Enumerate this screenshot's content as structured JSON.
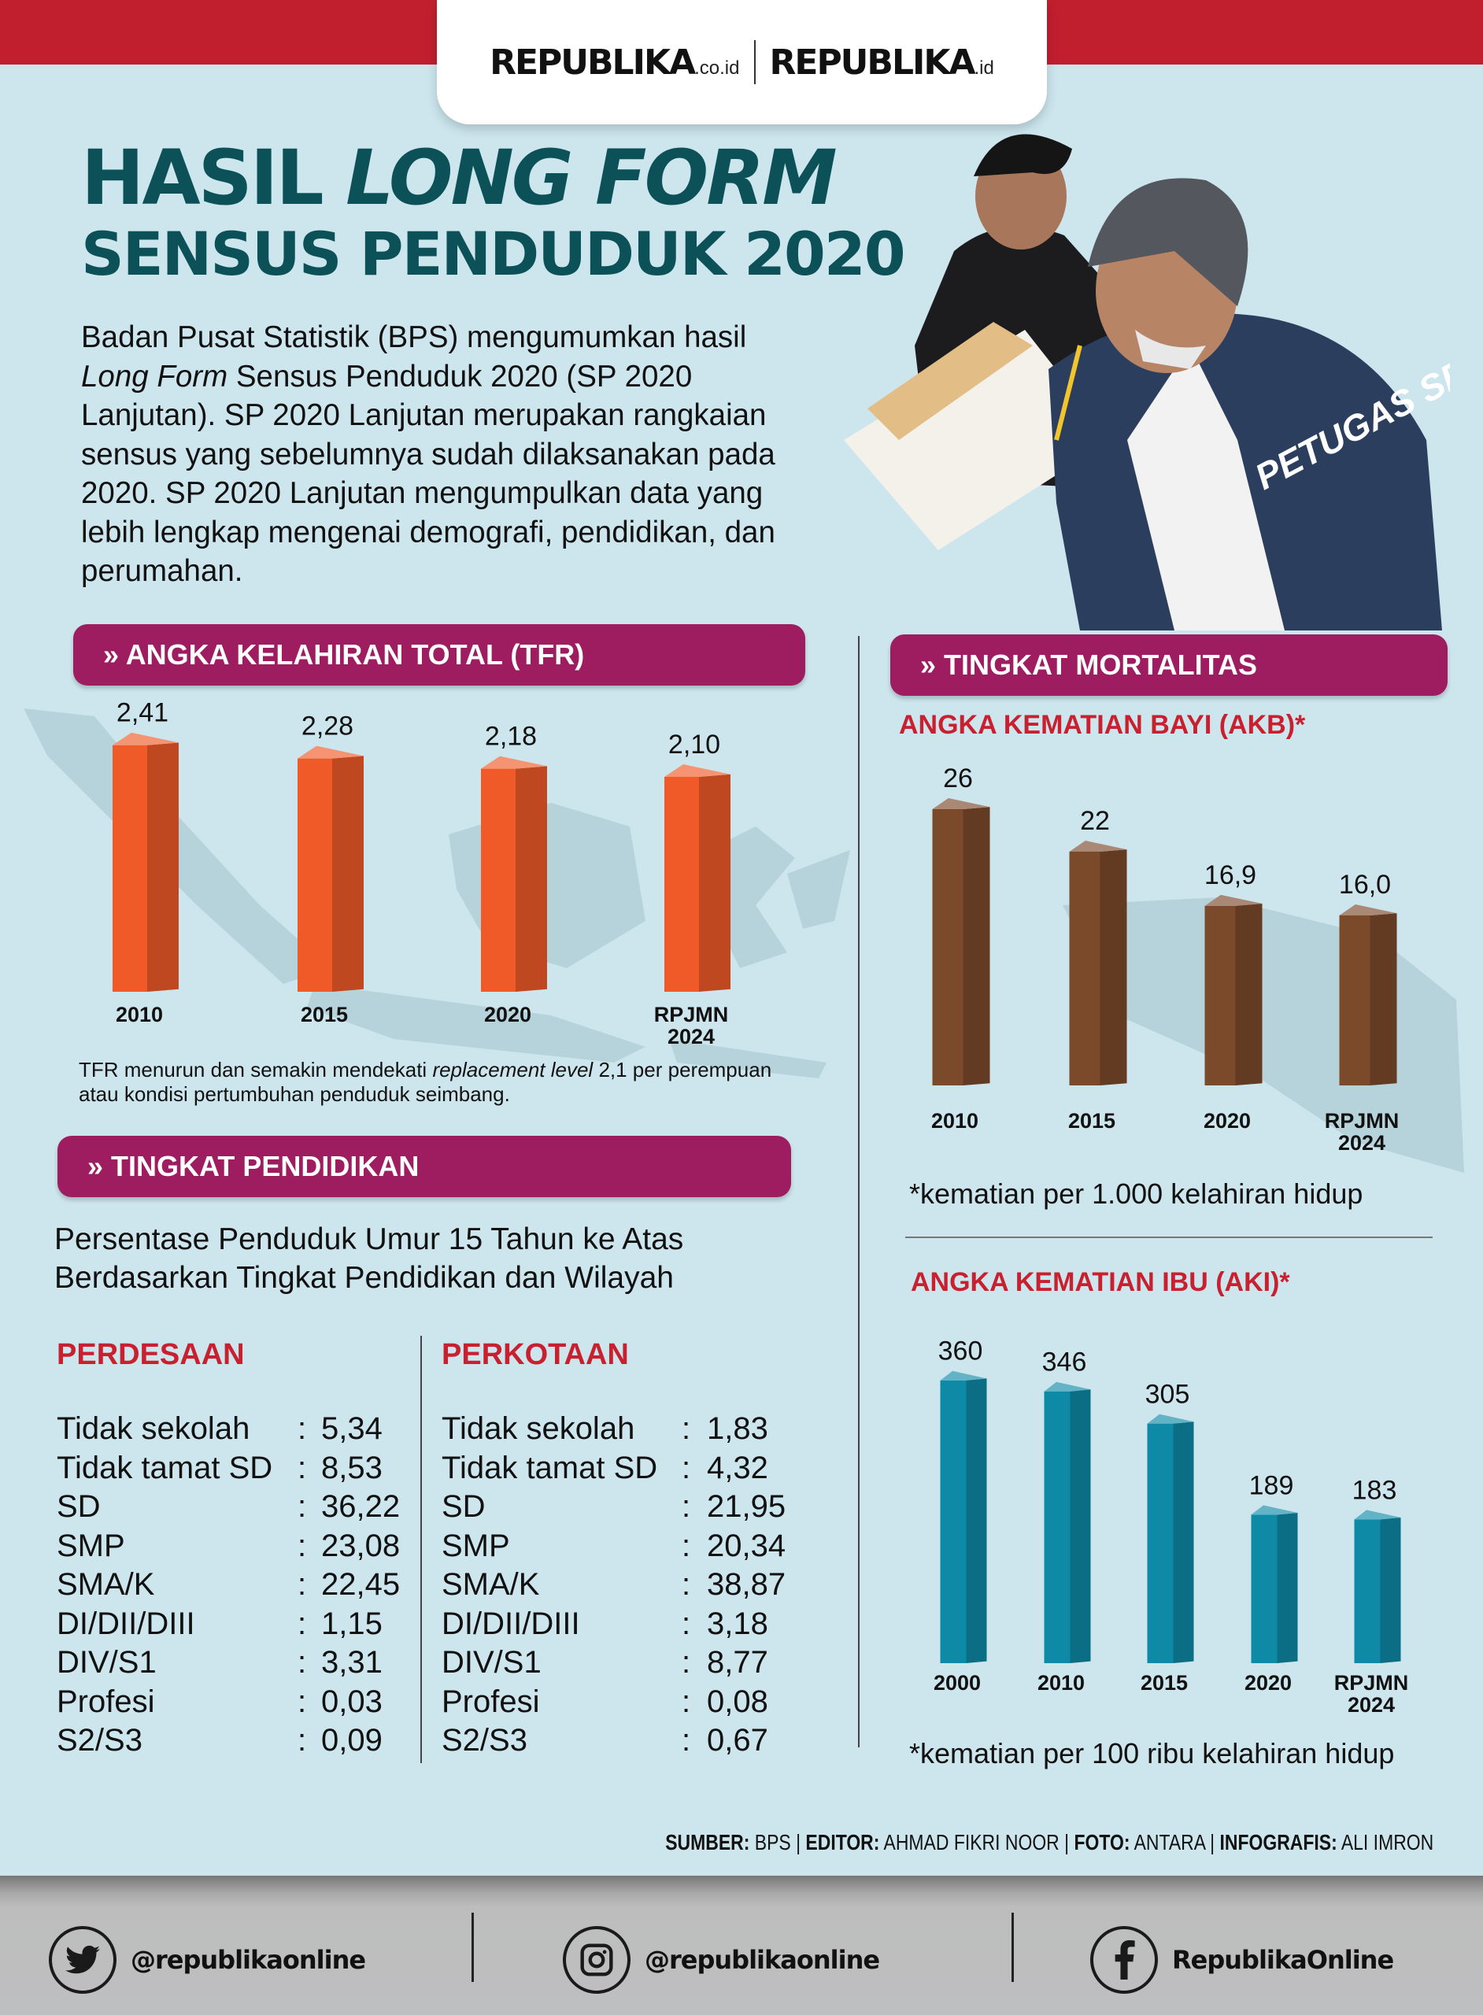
{
  "header": {
    "logo1": "REPUBLIKA",
    "logo1_suffix": ".co.id",
    "logo2": "REPUBLIKA",
    "logo2_suffix": ".id"
  },
  "title": {
    "line1_a": "HASIL ",
    "line1_b": "LONG FORM",
    "line2": "SENSUS PENDUDUK 2020"
  },
  "intro": {
    "p1": "Badan Pusat Statistik (BPS) mengumumkan hasil ",
    "p_italic": "Long Form",
    "p2": " Sensus Penduduk 2020 (SP 2020 Lanjutan). SP 2020 Lanjutan merupakan rangkaian sensus yang sebelumnya sudah dilaksanakan pada 2020. SP 2020 Lanjutan mengumpulkan data yang lebih lengkap mengenai demografi, pendidikan, dan perumahan."
  },
  "photo": {
    "vest_text": "PETUGAS SENSUS"
  },
  "tfr": {
    "header": "» ANGKA KELAHIRAN TOTAL (TFR)",
    "note_a": "TFR menurun dan semakin mendekati ",
    "note_italic": "replacement level",
    "note_b": " 2,1 per perempuan atau kondisi pertumbuhan penduduk seimbang."
  },
  "mortality": {
    "header": "» TINGKAT MORTALITAS",
    "akb_title": "ANGKA KEMATIAN BAYI (AKB)*",
    "akb_note": "*kematian per 1.000 kelahiran hidup",
    "aki_title": "ANGKA KEMATIAN IBU (AKI)*",
    "aki_note": "*kematian per 100 ribu kelahiran hidup"
  },
  "education": {
    "header": "» TINGKAT PENDIDIKAN",
    "subtitle1": "Persentase Penduduk Umur 15 Tahun ke Atas",
    "subtitle2": "Berdasarkan Tingkat Pendidikan dan Wilayah",
    "rural": {
      "title": "PERDESAAN",
      "rows": [
        {
          "label": "Tidak sekolah",
          "value": "5,34"
        },
        {
          "label": "Tidak tamat SD",
          "value": "8,53"
        },
        {
          "label": "SD",
          "value": "36,22"
        },
        {
          "label": "SMP",
          "value": "23,08"
        },
        {
          "label": "SMA/K",
          "value": "22,45"
        },
        {
          "label": "DI/DII/DIII",
          "value": "1,15"
        },
        {
          "label": "DIV/S1",
          "value": "3,31"
        },
        {
          "label": "Profesi",
          "value": "0,03"
        },
        {
          "label": "S2/S3",
          "value": "0,09"
        }
      ]
    },
    "urban": {
      "title": "PERKOTAAN",
      "rows": [
        {
          "label": "Tidak sekolah",
          "value": "1,83"
        },
        {
          "label": "Tidak tamat SD",
          "value": "4,32"
        },
        {
          "label": "SD",
          "value": "21,95"
        },
        {
          "label": "SMP",
          "value": "20,34"
        },
        {
          "label": "SMA/K",
          "value": "38,87"
        },
        {
          "label": "DI/DII/DIII",
          "value": "3,18"
        },
        {
          "label": "DIV/S1",
          "value": "8,77"
        },
        {
          "label": "Profesi",
          "value": "0,08"
        },
        {
          "label": "S2/S3",
          "value": "0,67"
        }
      ]
    }
  },
  "sources": {
    "k1": "SUMBER:",
    "v1": " BPS  |  ",
    "k2": "EDITOR:",
    "v2": " AHMAD FIKRI NOOR |  ",
    "k3": "FOTO:",
    "v3": " ANTARA  |  ",
    "k4": "INFOGRAFIS:",
    "v4": " ALI IMRON"
  },
  "footer": {
    "twitter": "@republikaonline",
    "instagram": "@republikaonline",
    "facebook": "RepublikaOnline",
    "icons": [
      "twitter-icon",
      "instagram-icon",
      "facebook-icon"
    ]
  },
  "colors": {
    "red": "#c11f2e",
    "title": "#0b5157",
    "pill": "#9e1c60",
    "tfr_bar": "#f05a28",
    "akb_bar": "#7a4a2a",
    "aki_bar": "#0e8aa6"
  },
  "chart_data": [
    {
      "type": "bar",
      "title": "» ANGKA KELAHIRAN TOTAL (TFR)",
      "categories": [
        "2010",
        "2015",
        "2020",
        "RPJMN 2024"
      ],
      "values": [
        2.41,
        2.28,
        2.18,
        2.1
      ],
      "labels": [
        "2,41",
        "2,28",
        "2,18",
        "2,10"
      ],
      "color": "#f05a28"
    },
    {
      "type": "bar",
      "title": "ANGKA KEMATIAN BAYI (AKB)*",
      "categories": [
        "2010",
        "2015",
        "2020",
        "RPJMN 2024"
      ],
      "values": [
        26,
        22,
        16.9,
        16.0
      ],
      "labels": [
        "26",
        "22",
        "16,9",
        "16,0"
      ],
      "color": "#7a4a2a"
    },
    {
      "type": "bar",
      "title": "ANGKA KEMATIAN IBU (AKI)*",
      "categories": [
        "2000",
        "2010",
        "2015",
        "2020",
        "RPJMN 2024"
      ],
      "values": [
        360,
        346,
        305,
        189,
        183
      ],
      "labels": [
        "360",
        "346",
        "305",
        "189",
        "183"
      ],
      "color": "#0e8aa6"
    }
  ]
}
